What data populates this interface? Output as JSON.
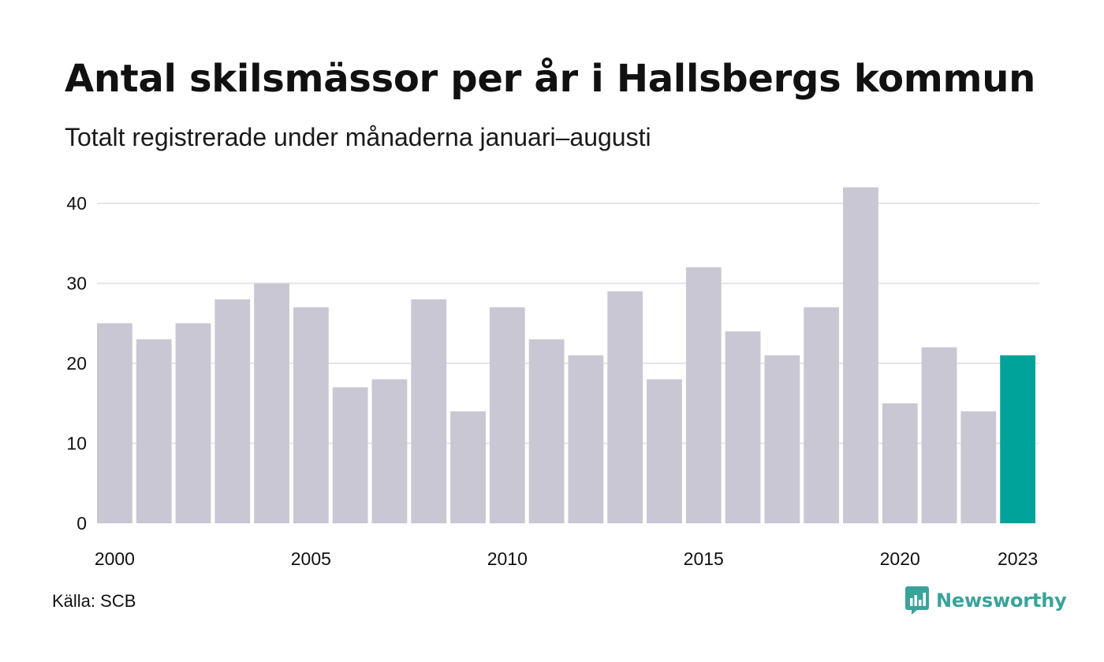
{
  "header": {
    "title": "Antal skilsmässor per år i Hallsbergs kommun",
    "subtitle": "Totalt registrerade under månaderna januari–augusti"
  },
  "footer": {
    "source": "Källa: SCB",
    "logo_text": "Newsworthy",
    "logo_icon": "bar-chart-speech-bubble-icon"
  },
  "colors": {
    "bar": "#c8c7d3",
    "highlight": "#00a39a",
    "grid": "#e6e6e9",
    "text": "#111111",
    "logo": "#3aa39a"
  },
  "chart_data": {
    "type": "bar",
    "title": "Antal skilsmässor per år i Hallsbergs kommun",
    "subtitle": "Totalt registrerade under månaderna januari–augusti",
    "xlabel": "",
    "ylabel": "",
    "categories": [
      "2000",
      "2001",
      "2002",
      "2003",
      "2004",
      "2005",
      "2006",
      "2007",
      "2008",
      "2009",
      "2010",
      "2011",
      "2012",
      "2013",
      "2014",
      "2015",
      "2016",
      "2017",
      "2018",
      "2019",
      "2020",
      "2021",
      "2022",
      "2023"
    ],
    "values": [
      25,
      23,
      25,
      28,
      30,
      27,
      17,
      18,
      28,
      14,
      27,
      23,
      21,
      29,
      18,
      32,
      24,
      21,
      27,
      42,
      15,
      22,
      14,
      21
    ],
    "highlight_category": "2023",
    "x_tick_labels": [
      "2000",
      "2005",
      "2010",
      "2015",
      "2020",
      "2023"
    ],
    "y_ticks": [
      0,
      10,
      20,
      30,
      40
    ],
    "ylim": [
      0,
      42
    ],
    "grid": true,
    "legend": "none"
  }
}
